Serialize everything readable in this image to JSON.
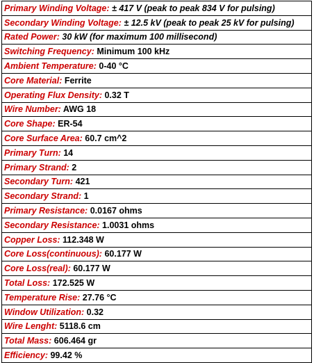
{
  "colors": {
    "label": "#cc0000",
    "value": "#000000",
    "border": "#000000",
    "background": "#ffffff"
  },
  "rows": [
    {
      "label": "Primary Winding Voltage:",
      "value": "± 417 V (peak to peak 834 V for pulsing)"
    },
    {
      "label": "Secondary Winding Voltage:",
      "value": "± 12.5 kV (peak to peak 25 kV for pulsing)"
    },
    {
      "label": "Rated Power:",
      "value": "30 kW (for maximum 100 millisecond)"
    },
    {
      "label": "Switching Frequency:",
      "value": "Minimum 100 kHz"
    },
    {
      "label": "Ambient Temperature:",
      "value": "0-40 °C"
    },
    {
      "label": "Core Material:",
      "value": "Ferrite"
    },
    {
      "label": "Operating Flux Density:",
      "value": "0.32 T"
    },
    {
      "label": "Wire Number:",
      "value": "AWG 18"
    },
    {
      "label": "Core Shape:",
      "value": "ER-54"
    },
    {
      "label": "Core Surface Area:",
      "value": "60.7 cm^2"
    },
    {
      "label": "Primary Turn:",
      "value": "14"
    },
    {
      "label": "Primary Strand:",
      "value": "2"
    },
    {
      "label": "Secondary Turn:",
      "value": "421"
    },
    {
      "label": "Secondary Strand:",
      "value": "1"
    },
    {
      "label": "Primary Resistance:",
      "value": "0.0167 ohms"
    },
    {
      "label": "Secondary Resistance:",
      "value": "1.0031 ohms"
    },
    {
      "label": "Copper Loss:",
      "value": "112.348 W"
    },
    {
      "label": "Core Loss(continuous):",
      "value": "60.177 W"
    },
    {
      "label": "Core Loss(real):",
      "value": "60.177 W"
    },
    {
      "label": "Total Loss:",
      "value": "172.525 W"
    },
    {
      "label": "Temperature Rise:",
      "value": "27.76 °C"
    },
    {
      "label": "Window Utilization:",
      "value": "0.32"
    },
    {
      "label": "Wire Lenght:",
      "value": "5118.6 cm"
    },
    {
      "label": "Total Mass:",
      "value": "606.464 gr"
    },
    {
      "label": "Efficiency:",
      "value": "99.42 %"
    }
  ]
}
